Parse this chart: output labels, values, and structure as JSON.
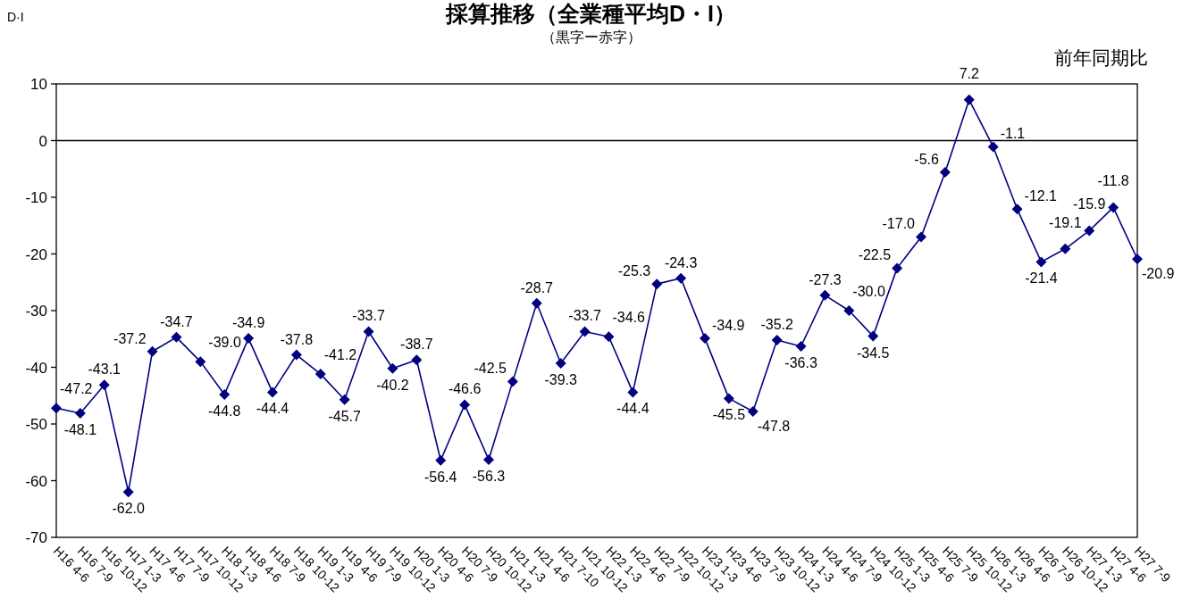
{
  "chart_data": {
    "type": "line",
    "title": "採算推移（全業種平均D・I）",
    "subtitle": "（黒字ー赤字）",
    "ylabel": "D·I",
    "annotations": [
      "前年同期比"
    ],
    "categories": [
      "H16 4-6",
      "H16 7-9",
      "H16 10-12",
      "H17 1-3",
      "H17 4-6",
      "H17 7-9",
      "H17 10-12",
      "H18 1-3",
      "H18 4-6",
      "H18 7-9",
      "H18 10-12",
      "H19 1-3",
      "H19 4-6",
      "H19 7-9",
      "H19 10-12",
      "H20 1-3",
      "H20 4-6",
      "H20 7-9",
      "H20 10-12",
      "H21 1-3",
      "H21 4-6",
      "H21 7-10",
      "H21 10-12",
      "H22 1-3",
      "H22 4-6",
      "H22 7-9",
      "H22 10-12",
      "H23 1-3",
      "H23 4-6",
      "H23 7-9",
      "H23 10-12",
      "H24 1-3",
      "H24 4-6",
      "H24 7-9",
      "H24 10-12",
      "H25 1-3",
      "H25 4-6",
      "H25 7-9",
      "H25 10-12",
      "H26 1-3",
      "H26 4-6",
      "H26 7-9",
      "H26 10-12",
      "H27 1-3",
      "H27 4-6",
      "H27 7-9"
    ],
    "series": [
      {
        "color": "#000080",
        "values": [
          -47.2,
          -48.1,
          -43.1,
          -62.0,
          -37.2,
          -34.7,
          -39.0,
          -44.8,
          -34.9,
          -44.4,
          -37.8,
          -41.2,
          -45.7,
          -33.7,
          -40.2,
          -38.7,
          -56.4,
          -46.6,
          -56.3,
          -42.5,
          -28.7,
          -39.3,
          -33.7,
          -34.6,
          -44.4,
          -25.3,
          -24.3,
          -34.9,
          -45.5,
          -47.8,
          -35.2,
          -36.3,
          -27.3,
          -30.0,
          -34.5,
          -22.5,
          -17.0,
          -5.6,
          7.2,
          -1.1,
          -12.1,
          -21.4,
          -19.1,
          -15.9,
          -11.8,
          -20.9
        ],
        "value_labels": [
          "-47.2",
          "-48.1",
          "-43.1",
          "-62.0",
          "-37.2",
          "-34.7",
          "-39.0",
          "-44.8",
          "-34.9",
          "-44.4",
          "-37.8",
          "-41.2",
          "-45.7",
          "-33.7",
          "-40.2",
          "-38.7",
          "-56.4",
          "-46.6",
          "-56.3",
          "-42.5",
          "-28.7",
          "-39.3",
          "-33.7",
          "-34.6",
          "-44.4",
          "-25.3",
          "-24.3",
          "-34.9",
          "-45.5",
          "-47.8",
          "-35.2",
          "-36.3",
          "-27.3",
          "-30.0",
          "-34.5",
          "-22.5",
          "-17.0",
          "-5.6",
          "7.2",
          "-1.1",
          "-12.1",
          "-21.4",
          "-19.1",
          "-15.9",
          "-11.8",
          "-20.9"
        ]
      }
    ],
    "ylim": [
      -70,
      10
    ],
    "yticks": [
      -70,
      -60,
      -50,
      -40,
      -30,
      -20,
      -10,
      0,
      10
    ],
    "ref_lines": [
      {
        "axis": "y",
        "value": 0
      }
    ],
    "marker": "diamond",
    "line_style": "solid",
    "grid": false
  }
}
